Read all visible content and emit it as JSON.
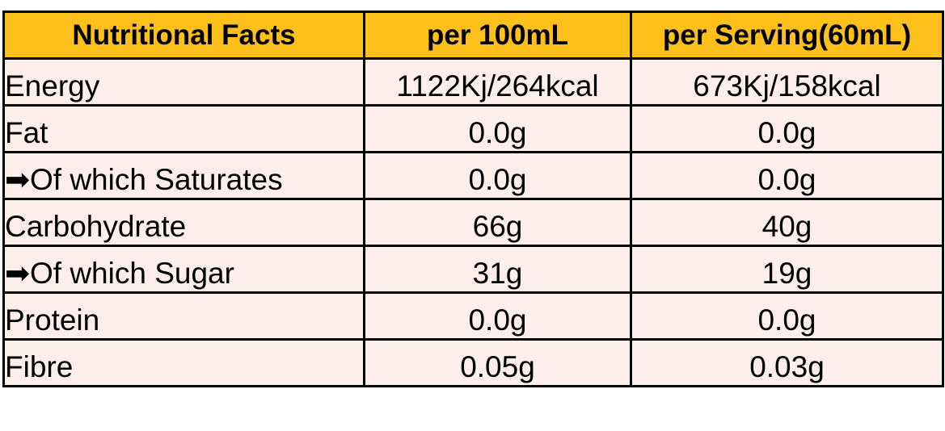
{
  "table": {
    "header": [
      "Nutritional Facts",
      "per 100mL",
      "per Serving(60mL)"
    ],
    "rows": [
      [
        "Energy",
        "1122Kj/264kcal",
        "673Kj/158kcal"
      ],
      [
        "Fat",
        "0.0g",
        "0.0g"
      ],
      [
        "➡Of which Saturates",
        "0.0g",
        "0.0g"
      ],
      [
        "Carbohydrate",
        "66g",
        "40g"
      ],
      [
        "➡Of which Sugar",
        "31g",
        "19g"
      ],
      [
        "Protein",
        "0.0g",
        "0.0g"
      ],
      [
        "Fibre",
        "0.05g",
        "0.03g"
      ]
    ]
  }
}
